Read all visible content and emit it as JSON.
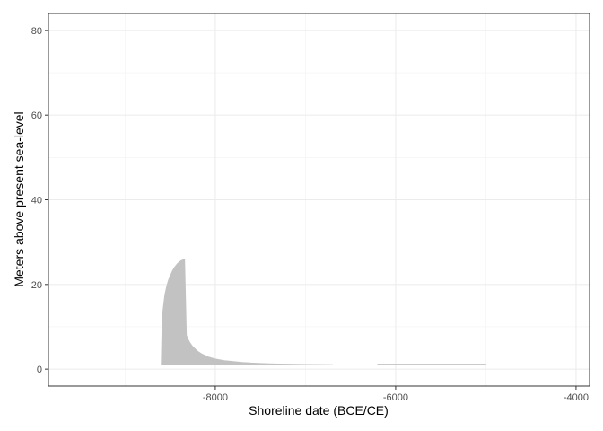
{
  "chart_data": {
    "type": "area",
    "title": "",
    "xlabel": "Shoreline date (BCE/CE)",
    "ylabel": "Meters above present sea-level",
    "xlim": [
      -9850,
      -3850
    ],
    "ylim": [
      -4,
      84
    ],
    "x_ticks": [
      -8000,
      -6000,
      -4000
    ],
    "y_ticks": [
      0,
      20,
      40,
      60,
      80
    ],
    "grid": true,
    "fill_color": "#c2c2c2",
    "series": [
      {
        "x": [
          -8600,
          -8590,
          -8580,
          -8560,
          -8540,
          -8520,
          -8500,
          -8480,
          -8460,
          -8440,
          -8420,
          -8400,
          -8380,
          -8360,
          -8340,
          -8320,
          -8300,
          -8280,
          -8260,
          -8240,
          -8220,
          -8200,
          -8180,
          -8150,
          -8120,
          -8100,
          -8080,
          -8050,
          -8000,
          -7950,
          -7900,
          -7850,
          -7800,
          -7700,
          -7600,
          -7500,
          -7400,
          -7300,
          -7200,
          -7000,
          -6800,
          -6700
        ],
        "y_low": [
          1,
          1,
          1,
          1,
          1,
          1,
          1,
          1,
          1,
          1,
          1,
          1,
          1,
          1,
          1,
          1,
          1,
          1,
          1,
          1,
          1,
          1,
          1,
          1,
          1,
          1,
          1,
          1,
          1,
          1,
          1,
          1,
          1,
          1,
          1,
          1,
          1,
          1,
          1,
          1,
          1,
          1
        ],
        "y_high": [
          1,
          11,
          14,
          17.5,
          19.5,
          21,
          22,
          23,
          23.8,
          24.4,
          24.9,
          25.3,
          25.6,
          25.8,
          26,
          8,
          7,
          6.2,
          5.6,
          5.1,
          4.7,
          4.3,
          4.0,
          3.6,
          3.3,
          3.1,
          2.9,
          2.7,
          2.4,
          2.2,
          2.0,
          1.9,
          1.8,
          1.6,
          1.45,
          1.35,
          1.28,
          1.22,
          1.18,
          1.12,
          1.08,
          1.05
        ]
      },
      {
        "x": [
          -6200,
          -5000
        ],
        "y_low": [
          1,
          1
        ],
        "y_high": [
          1.2,
          1.2
        ]
      }
    ]
  }
}
